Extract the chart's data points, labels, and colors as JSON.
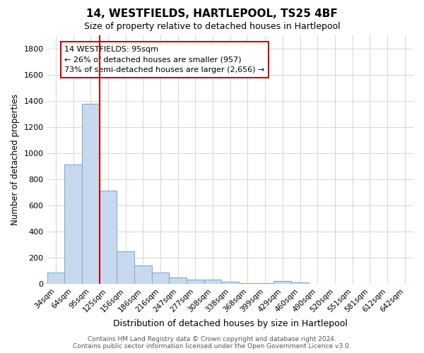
{
  "title": "14, WESTFIELDS, HARTLEPOOL, TS25 4BF",
  "subtitle": "Size of property relative to detached houses in Hartlepool",
  "xlabel": "Distribution of detached houses by size in Hartlepool",
  "ylabel": "Number of detached properties",
  "categories": [
    "34sqm",
    "64sqm",
    "95sqm",
    "125sqm",
    "156sqm",
    "186sqm",
    "216sqm",
    "247sqm",
    "277sqm",
    "308sqm",
    "338sqm",
    "368sqm",
    "399sqm",
    "429sqm",
    "460sqm",
    "490sqm",
    "520sqm",
    "551sqm",
    "581sqm",
    "612sqm",
    "642sqm"
  ],
  "values": [
    85,
    910,
    1375,
    715,
    248,
    140,
    85,
    50,
    32,
    32,
    18,
    5,
    5,
    20,
    8,
    0,
    0,
    0,
    0,
    0,
    0
  ],
  "bar_color": "#c8d9ef",
  "bar_edge_color": "#7bafd4",
  "marker_index": 2,
  "marker_color": "#cc0000",
  "ylim": [
    0,
    1900
  ],
  "yticks": [
    0,
    200,
    400,
    600,
    800,
    1000,
    1200,
    1400,
    1600,
    1800
  ],
  "annotation_text": "14 WESTFIELDS: 95sqm\n← 26% of detached houses are smaller (957)\n73% of semi-detached houses are larger (2,656) →",
  "annotation_box_color": "#ffffff",
  "annotation_box_edge_color": "#cc0000",
  "footer": "Contains HM Land Registry data © Crown copyright and database right 2024.\nContains public sector information licensed under the Open Government Licence v3.0.",
  "background_color": "#ffffff",
  "grid_color": "#d0d0d0"
}
